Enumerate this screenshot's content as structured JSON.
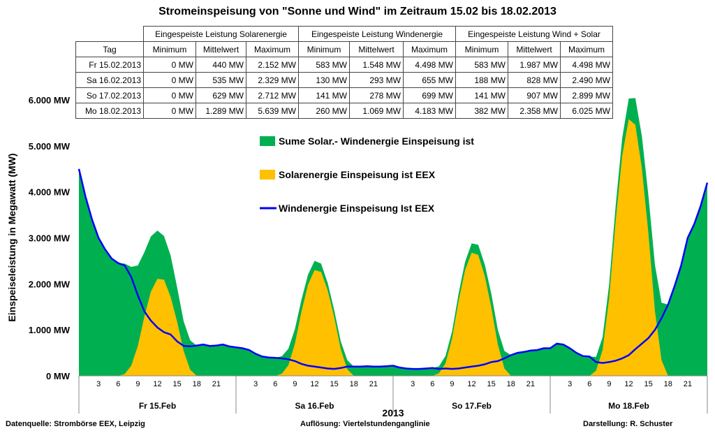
{
  "chart_data": {
    "type": "area",
    "title": "Stromeinspeisung von \"Sonne und Wind\" im Zeitraum 15.02 bis 18.02.2013",
    "ylabel": "Einspeiseleistung in Megawatt (MW)",
    "xlabel": "2013",
    "ylim": [
      0,
      6000
    ],
    "yticks": [
      "0 MW",
      "1.000 MW",
      "2.000 MW",
      "3.000 MW",
      "4.000 MW",
      "5.000 MW",
      "6.000 MW"
    ],
    "hour_ticks": [
      "3",
      "6",
      "9",
      "12",
      "15",
      "18",
      "21"
    ],
    "days": [
      "Fr 15.Feb",
      "Sa 16.Feb",
      "So 17.Feb",
      "Mo 18.Feb"
    ],
    "x_unit": "hours since 15.02.2013 00:00, hourly 0..96",
    "series": [
      {
        "name": "Sume Solar.- Windenergie Einspeisung ist",
        "color": "#00b050",
        "kind": "area",
        "derived": "wind+solar"
      },
      {
        "name": "Solarenergie Einspeisung ist EEX",
        "color": "#ffc000",
        "kind": "area",
        "values": [
          0,
          0,
          0,
          0,
          0,
          0,
          0,
          40,
          220,
          650,
          1290,
          1830,
          2110,
          2090,
          1720,
          1180,
          540,
          130,
          0,
          0,
          0,
          0,
          0,
          0,
          0,
          0,
          0,
          0,
          0,
          0,
          0,
          45,
          230,
          700,
          1400,
          1980,
          2300,
          2260,
          1860,
          1280,
          580,
          140,
          0,
          0,
          0,
          0,
          0,
          0,
          0,
          0,
          0,
          0,
          0,
          0,
          0,
          55,
          270,
          810,
          1630,
          2300,
          2680,
          2630,
          2170,
          1490,
          680,
          160,
          0,
          0,
          0,
          0,
          0,
          0,
          0,
          0,
          0,
          0,
          0,
          0,
          0,
          110,
          560,
          1690,
          3380,
          4790,
          5580,
          5460,
          4510,
          3100,
          1410,
          340,
          0,
          0,
          0,
          0,
          0,
          0,
          0
        ]
      },
      {
        "name": "Windenergie Einspeisung Ist EEX",
        "color": "#0000ff",
        "kind": "line",
        "values": [
          4500,
          3900,
          3400,
          3000,
          2750,
          2550,
          2450,
          2400,
          2150,
          1750,
          1400,
          1200,
          1050,
          950,
          900,
          750,
          650,
          640,
          660,
          680,
          650,
          660,
          680,
          640,
          620,
          600,
          560,
          480,
          420,
          400,
          390,
          380,
          360,
          320,
          260,
          220,
          200,
          180,
          160,
          150,
          170,
          200,
          200,
          200,
          210,
          200,
          200,
          210,
          220,
          180,
          160,
          150,
          150,
          160,
          170,
          150,
          160,
          150,
          160,
          180,
          200,
          220,
          250,
          300,
          320,
          380,
          450,
          500,
          520,
          550,
          560,
          600,
          600,
          700,
          680,
          600,
          500,
          430,
          420,
          300,
          280,
          300,
          330,
          380,
          450,
          580,
          700,
          820,
          1000,
          1250,
          1550,
          1950,
          2400,
          3000,
          3300,
          3700,
          4200
        ]
      }
    ]
  },
  "table": {
    "groups": [
      "Eingespeiste Leistung Solarenergie",
      "Eingespeiste Leistung Windenergie",
      "Eingespeiste Leistung Wind  + Solar"
    ],
    "headers": [
      "Tag",
      "Minimum",
      "Mittelwert",
      "Maximum",
      "Minimum",
      "Mittelwert",
      "Maximum",
      "Minimum",
      "Mittelwert",
      "Maximum"
    ],
    "rows": [
      [
        "Fr 15.02.2013",
        "0 MW",
        "440 MW",
        "2.152 MW",
        "583 MW",
        "1.548 MW",
        "4.498 MW",
        "583 MW",
        "1.987 MW",
        "4.498 MW"
      ],
      [
        "Sa 16.02.2013",
        "0 MW",
        "535 MW",
        "2.329 MW",
        "130 MW",
        "293 MW",
        "655 MW",
        "188 MW",
        "828 MW",
        "2.490 MW"
      ],
      [
        "So 17.02.2013",
        "0 MW",
        "629 MW",
        "2.712 MW",
        "141 MW",
        "278 MW",
        "699 MW",
        "141 MW",
        "907 MW",
        "2.899 MW"
      ],
      [
        "Mo 18.02.2013",
        "0 MW",
        "1.289 MW",
        "5.639 MW",
        "260 MW",
        "1.069 MW",
        "4.183 MW",
        "382 MW",
        "2.358 MW",
        "6.025 MW"
      ]
    ]
  },
  "footer": {
    "source": "Datenquelle:  Strombörse EEX, Leipzig",
    "resolution": "Auflösung:  Viertelstundenganglinie",
    "author": "Darstellung: R. Schuster"
  }
}
